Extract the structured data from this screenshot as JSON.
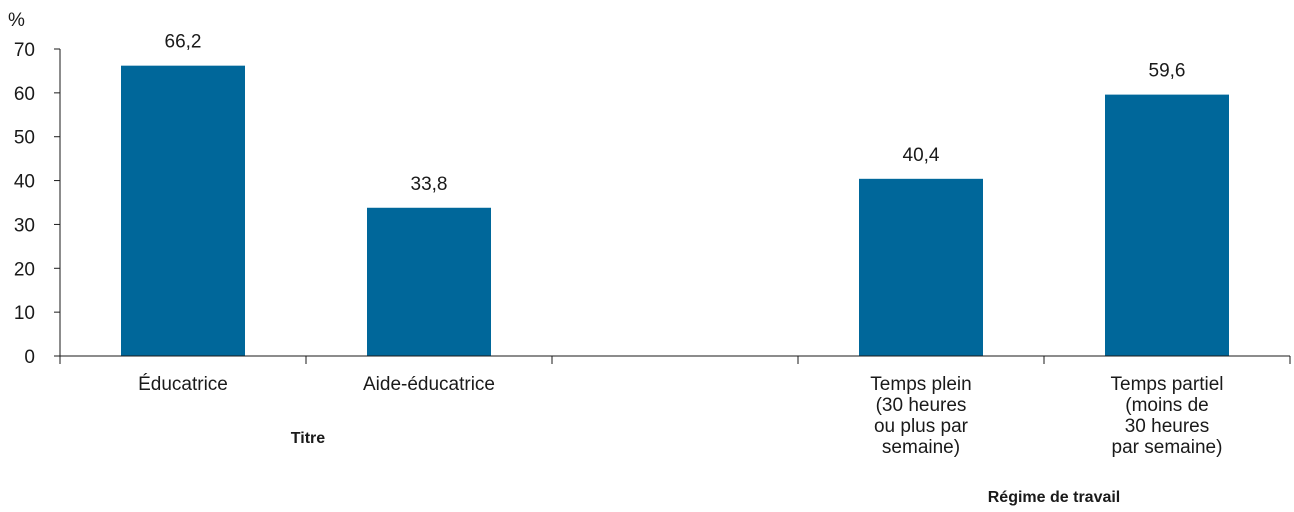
{
  "chart_data": {
    "type": "bar",
    "y_unit_label": "%",
    "ylim": [
      0,
      70
    ],
    "yticks": [
      0,
      10,
      20,
      30,
      40,
      50,
      60,
      70
    ],
    "grid": false,
    "bar_color": "#00679a",
    "groups": [
      {
        "label": "Titre",
        "categories": [
          "Éducatrice",
          "Aide-éducatrice"
        ]
      },
      {
        "label": "Régime de travail",
        "categories": [
          "Temps plein|(30 heures|ou plus par|semaine)",
          "Temps partiel|(moins de|30 heures|par semaine)"
        ]
      }
    ],
    "categories": [
      "Éducatrice",
      "Aide-éducatrice",
      "Temps plein|(30 heures|ou plus par|semaine)",
      "Temps partiel|(moins de|30 heures|par semaine)"
    ],
    "values": [
      66.2,
      33.8,
      40.4,
      59.6
    ],
    "value_labels": [
      "66,2",
      "33,8",
      "40,4",
      "59,6"
    ]
  }
}
